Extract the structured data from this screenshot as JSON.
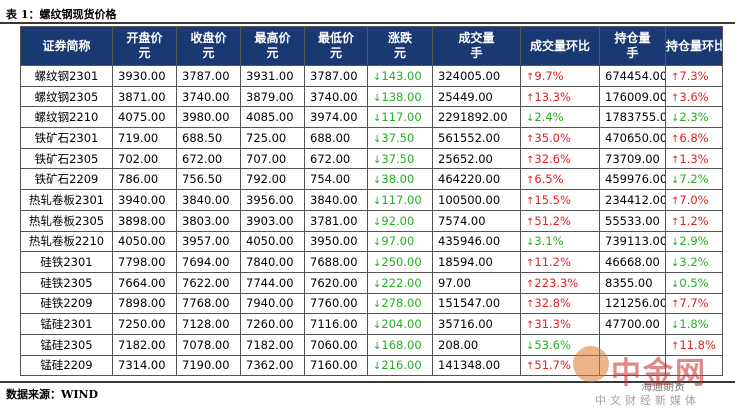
{
  "caption": "表 1：螺纹钢现货价格",
  "source": "数据来源：WIND",
  "headers": [
    [
      "证券简称",
      ""
    ],
    [
      "开盘价",
      "元"
    ],
    [
      "收盘价",
      "元"
    ],
    [
      "最高价",
      "元"
    ],
    [
      "最低价",
      "元"
    ],
    [
      "涨跌",
      "元"
    ],
    [
      "成交量",
      "手"
    ],
    [
      "成交量环比",
      ""
    ],
    [
      "持仓量",
      "手"
    ],
    [
      "持仓量环比",
      ""
    ]
  ],
  "rows": [
    {
      "name": "螺纹钢2301",
      "open": "3930.00",
      "close": "3787.00",
      "high": "3931.00",
      "low": "3787.00",
      "chg": "143.00",
      "chg_dir": "down",
      "vol": "324005.00",
      "vol_chg": "9.7%",
      "vol_dir": "up",
      "oi": "674454.00",
      "oi_chg": "7.3%",
      "oi_dir": "up"
    },
    {
      "name": "螺纹钢2305",
      "open": "3871.00",
      "close": "3740.00",
      "high": "3879.00",
      "low": "3740.00",
      "chg": "138.00",
      "chg_dir": "down",
      "vol": "25449.00",
      "vol_chg": "13.3%",
      "vol_dir": "up",
      "oi": "176009.00",
      "oi_chg": "3.6%",
      "oi_dir": "up"
    },
    {
      "name": "螺纹钢2210",
      "open": "4075.00",
      "close": "3980.00",
      "high": "4085.00",
      "low": "3974.00",
      "chg": "117.00",
      "chg_dir": "down",
      "vol": "2291892.00",
      "vol_chg": "2.4%",
      "vol_dir": "down",
      "oi": "1783755.00",
      "oi_chg": "2.3%",
      "oi_dir": "down"
    },
    {
      "name": "铁矿石2301",
      "open": "719.00",
      "close": "688.50",
      "high": "725.00",
      "low": "688.00",
      "chg": "37.50",
      "chg_dir": "down",
      "vol": "561552.00",
      "vol_chg": "35.0%",
      "vol_dir": "up",
      "oi": "470650.00",
      "oi_chg": "6.8%",
      "oi_dir": "up"
    },
    {
      "name": "铁矿石2305",
      "open": "702.00",
      "close": "672.00",
      "high": "707.00",
      "low": "672.00",
      "chg": "37.50",
      "chg_dir": "down",
      "vol": "25652.00",
      "vol_chg": "32.6%",
      "vol_dir": "up",
      "oi": "73709.00",
      "oi_chg": "1.3%",
      "oi_dir": "up"
    },
    {
      "name": "铁矿石2209",
      "open": "786.00",
      "close": "756.50",
      "high": "792.00",
      "low": "754.00",
      "chg": "38.00",
      "chg_dir": "down",
      "vol": "464220.00",
      "vol_chg": "6.5%",
      "vol_dir": "up",
      "oi": "459976.00",
      "oi_chg": "7.2%",
      "oi_dir": "down"
    },
    {
      "name": "热轧卷板2301",
      "open": "3940.00",
      "close": "3840.00",
      "high": "3956.00",
      "low": "3840.00",
      "chg": "117.00",
      "chg_dir": "down",
      "vol": "100500.00",
      "vol_chg": "15.5%",
      "vol_dir": "up",
      "oi": "234412.00",
      "oi_chg": "7.0%",
      "oi_dir": "up"
    },
    {
      "name": "热轧卷板2305",
      "open": "3898.00",
      "close": "3803.00",
      "high": "3903.00",
      "low": "3781.00",
      "chg": "92.00",
      "chg_dir": "down",
      "vol": "7574.00",
      "vol_chg": "51.2%",
      "vol_dir": "up",
      "oi": "55533.00",
      "oi_chg": "1.2%",
      "oi_dir": "up"
    },
    {
      "name": "热轧卷板2210",
      "open": "4050.00",
      "close": "3957.00",
      "high": "4050.00",
      "low": "3950.00",
      "chg": "97.00",
      "chg_dir": "down",
      "vol": "435946.00",
      "vol_chg": "3.1%",
      "vol_dir": "down",
      "oi": "739113.00",
      "oi_chg": "2.9%",
      "oi_dir": "down"
    },
    {
      "name": "硅铁2301",
      "open": "7798.00",
      "close": "7694.00",
      "high": "7840.00",
      "low": "7688.00",
      "chg": "250.00",
      "chg_dir": "down",
      "vol": "18594.00",
      "vol_chg": "11.2%",
      "vol_dir": "up",
      "oi": "46668.00",
      "oi_chg": "3.2%",
      "oi_dir": "down"
    },
    {
      "name": "硅铁2305",
      "open": "7664.00",
      "close": "7622.00",
      "high": "7744.00",
      "low": "7620.00",
      "chg": "222.00",
      "chg_dir": "down",
      "vol": "97.00",
      "vol_chg": "223.3%",
      "vol_dir": "up",
      "oi": "8355.00",
      "oi_chg": "0.5%",
      "oi_dir": "down"
    },
    {
      "name": "硅铁2209",
      "open": "7898.00",
      "close": "7768.00",
      "high": "7940.00",
      "low": "7760.00",
      "chg": "278.00",
      "chg_dir": "down",
      "vol": "151547.00",
      "vol_chg": "32.8%",
      "vol_dir": "up",
      "oi": "121256.00",
      "oi_chg": "7.7%",
      "oi_dir": "up"
    },
    {
      "name": "锰硅2301",
      "open": "7250.00",
      "close": "7128.00",
      "high": "7260.00",
      "low": "7116.00",
      "chg": "204.00",
      "chg_dir": "down",
      "vol": "35716.00",
      "vol_chg": "31.3%",
      "vol_dir": "up",
      "oi": "47700.00",
      "oi_chg": "1.8%",
      "oi_dir": "down"
    },
    {
      "name": "锰硅2305",
      "open": "7182.00",
      "close": "7078.00",
      "high": "7182.00",
      "low": "7060.00",
      "chg": "168.00",
      "chg_dir": "down",
      "vol": "208.00",
      "vol_chg": "53.6%",
      "vol_dir": "down",
      "oi": "",
      "oi_chg": "11.8%",
      "oi_dir": "up"
    },
    {
      "name": "锰硅2209",
      "open": "7314.00",
      "close": "7190.00",
      "high": "7362.00",
      "low": "7160.00",
      "chg": "216.00",
      "chg_dir": "down",
      "vol": "141348.00",
      "vol_chg": "51.7%",
      "vol_dir": "up",
      "oi": "",
      "oi_chg": "",
      "oi_dir": "up"
    }
  ],
  "watermark": {
    "logo": "中金网",
    "brand": "海通期货",
    "sub": "中文财经新媒体"
  }
}
